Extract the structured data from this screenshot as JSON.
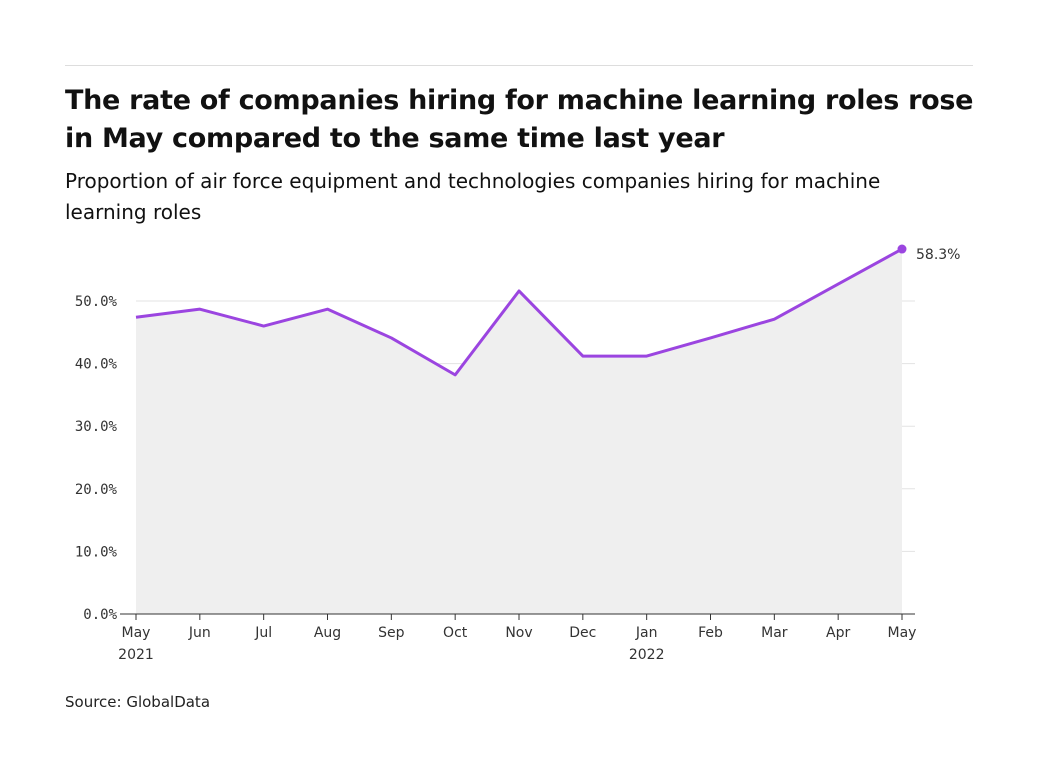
{
  "title": "The rate of companies hiring for machine learning roles rose in May compared to the same time last year",
  "subtitle": "Proportion of air force equipment and technologies companies hiring for machine learning roles",
  "source": "Source: GlobalData",
  "chart_data": {
    "type": "area",
    "categories": [
      "May",
      "Jun",
      "Jul",
      "Aug",
      "Sep",
      "Oct",
      "Nov",
      "Dec",
      "Jan",
      "Feb",
      "Mar",
      "Apr",
      "May"
    ],
    "year_labels": {
      "0": "2021",
      "8": "2022"
    },
    "values": [
      47.4,
      48.7,
      46.0,
      48.7,
      44.1,
      38.2,
      51.6,
      41.2,
      41.2,
      44.1,
      47.1,
      52.7,
      58.3
    ],
    "yticks": [
      "0.0%",
      "10.0%",
      "20.0%",
      "30.0%",
      "40.0%",
      "50.0%"
    ],
    "ylim": [
      0,
      58.3
    ],
    "last_label": "58.3%",
    "line_color": "#9b45e0",
    "fill_color": "#efefef",
    "grid": true
  }
}
